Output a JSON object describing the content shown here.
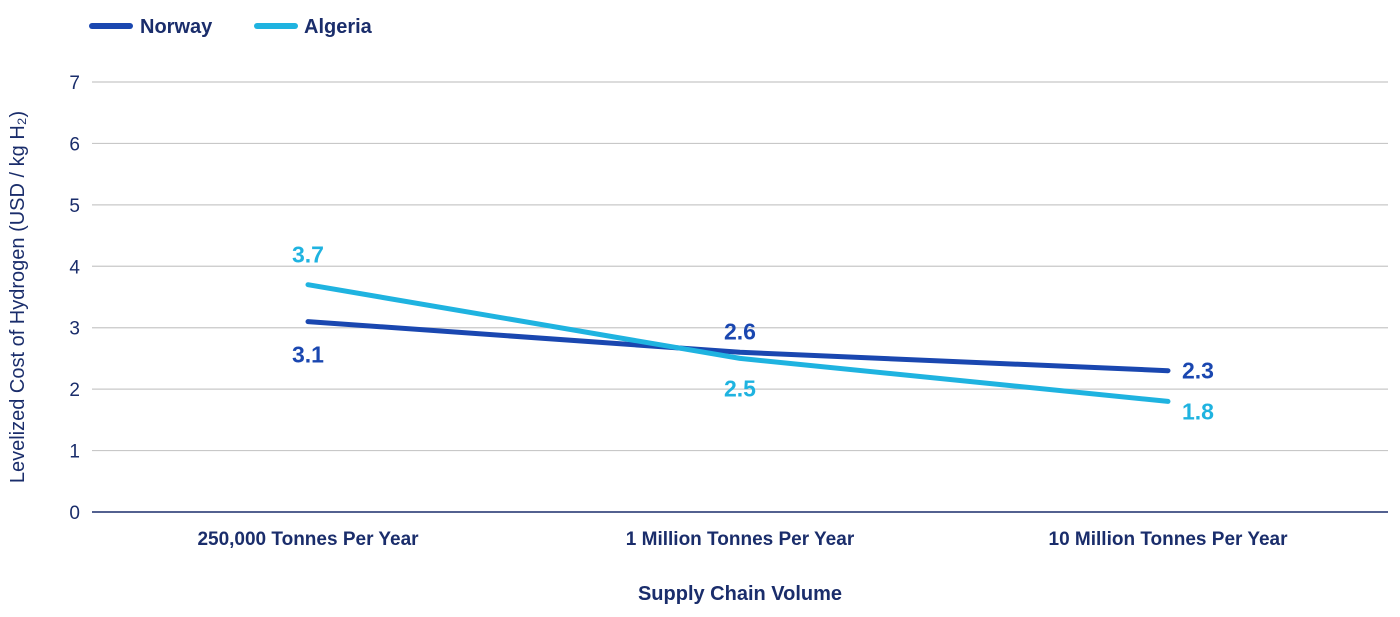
{
  "chart_data": {
    "type": "line",
    "categories": [
      "250,000 Tonnes Per Year",
      "1 Million Tonnes Per Year",
      "10 Million Tonnes Per Year"
    ],
    "series": [
      {
        "name": "Norway",
        "values": [
          3.1,
          2.6,
          2.3
        ],
        "labels": [
          "3.1",
          "2.6",
          "2.3"
        ],
        "color": "#1a47b0"
      },
      {
        "name": "Algeria",
        "values": [
          3.7,
          2.5,
          1.8
        ],
        "labels": [
          "3.7",
          "2.5",
          "1.8"
        ],
        "color": "#1fb3e0"
      }
    ],
    "xlabel": "Supply Chain Volume",
    "ylabel": "Levelized Cost of Hydrogen (USD / kg H₂)",
    "ylim": [
      0,
      7
    ],
    "yticks": [
      "0",
      "1",
      "2",
      "3",
      "4",
      "5",
      "6",
      "7"
    ],
    "grid": true,
    "legend_position": "top-left",
    "axis_text_color": "#1a2d6b",
    "gridline_color": "#c8c8c8"
  }
}
